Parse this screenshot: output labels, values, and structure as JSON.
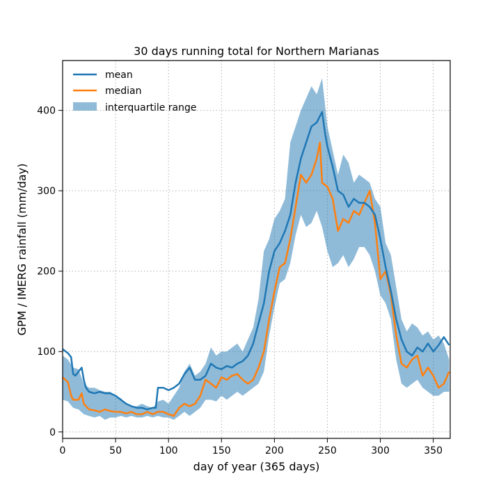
{
  "chart_data": {
    "type": "line",
    "title": "30 days running total for Northern Marianas",
    "xlabel": "day of year (365 days)",
    "ylabel": "GPM / IMERG rainfall (mm/day)",
    "xlim": [
      0,
      366
    ],
    "ylim": [
      -8,
      462
    ],
    "xticks": [
      0,
      50,
      100,
      150,
      200,
      250,
      300,
      350
    ],
    "yticks": [
      0,
      100,
      200,
      300,
      400
    ],
    "grid": true,
    "legend_position": "top-left",
    "colors": {
      "mean": "#1f77b4",
      "median": "#ff7f0e",
      "iqr": "#1f77b4"
    },
    "series": [
      {
        "name": "mean",
        "x": [
          0,
          5,
          8,
          10,
          12,
          15,
          18,
          20,
          22,
          25,
          30,
          35,
          40,
          45,
          50,
          55,
          60,
          65,
          70,
          75,
          80,
          85,
          88,
          90,
          95,
          100,
          105,
          110,
          115,
          120,
          125,
          130,
          135,
          140,
          145,
          150,
          155,
          160,
          165,
          170,
          175,
          180,
          185,
          190,
          195,
          200,
          205,
          210,
          215,
          220,
          225,
          230,
          235,
          240,
          245,
          248,
          250,
          255,
          260,
          265,
          270,
          275,
          280,
          285,
          290,
          295,
          300,
          305,
          310,
          315,
          320,
          325,
          330,
          335,
          340,
          345,
          350,
          355,
          360,
          365
        ],
        "values": [
          103,
          98,
          93,
          72,
          70,
          75,
          80,
          65,
          55,
          50,
          48,
          50,
          48,
          48,
          45,
          40,
          35,
          32,
          30,
          30,
          28,
          30,
          30,
          55,
          55,
          52,
          55,
          60,
          72,
          80,
          65,
          65,
          70,
          85,
          80,
          78,
          82,
          80,
          85,
          88,
          95,
          110,
          135,
          160,
          200,
          225,
          235,
          250,
          270,
          310,
          340,
          360,
          380,
          385,
          398,
          370,
          355,
          330,
          300,
          295,
          280,
          290,
          285,
          285,
          280,
          270,
          240,
          205,
          175,
          140,
          115,
          100,
          95,
          105,
          100,
          110,
          100,
          108,
          118,
          108
        ]
      },
      {
        "name": "median",
        "x": [
          0,
          5,
          8,
          10,
          15,
          18,
          20,
          25,
          30,
          35,
          40,
          45,
          50,
          55,
          60,
          65,
          70,
          75,
          80,
          85,
          90,
          95,
          100,
          105,
          110,
          115,
          120,
          125,
          130,
          135,
          140,
          145,
          150,
          155,
          160,
          165,
          170,
          175,
          180,
          185,
          190,
          195,
          200,
          205,
          210,
          215,
          220,
          225,
          230,
          235,
          240,
          243,
          245,
          250,
          255,
          260,
          265,
          270,
          275,
          280,
          285,
          290,
          295,
          300,
          305,
          310,
          315,
          320,
          325,
          330,
          335,
          340,
          345,
          350,
          355,
          360,
          365
        ],
        "values": [
          68,
          62,
          45,
          40,
          40,
          48,
          35,
          28,
          27,
          25,
          28,
          26,
          25,
          25,
          23,
          25,
          22,
          22,
          25,
          22,
          25,
          25,
          22,
          20,
          30,
          35,
          32,
          35,
          45,
          65,
          60,
          55,
          68,
          65,
          70,
          72,
          65,
          60,
          65,
          80,
          100,
          140,
          175,
          205,
          210,
          240,
          280,
          320,
          310,
          320,
          340,
          360,
          310,
          305,
          290,
          250,
          265,
          260,
          275,
          270,
          285,
          300,
          260,
          190,
          200,
          170,
          120,
          85,
          80,
          90,
          95,
          70,
          80,
          70,
          55,
          60,
          75
        ]
      }
    ],
    "iqr": {
      "name": "interquartile range",
      "x": [
        0,
        5,
        10,
        15,
        20,
        25,
        30,
        35,
        40,
        45,
        50,
        55,
        60,
        65,
        70,
        75,
        80,
        85,
        90,
        95,
        100,
        105,
        110,
        115,
        120,
        125,
        130,
        135,
        140,
        145,
        150,
        155,
        160,
        165,
        170,
        175,
        180,
        185,
        190,
        195,
        200,
        205,
        210,
        215,
        220,
        225,
        230,
        235,
        240,
        245,
        250,
        255,
        260,
        265,
        270,
        275,
        280,
        285,
        290,
        295,
        300,
        305,
        310,
        315,
        320,
        325,
        330,
        335,
        340,
        345,
        350,
        355,
        360,
        365
      ],
      "lower": [
        40,
        38,
        30,
        28,
        22,
        20,
        18,
        20,
        15,
        18,
        18,
        20,
        18,
        20,
        18,
        18,
        20,
        18,
        20,
        18,
        18,
        15,
        20,
        25,
        20,
        25,
        30,
        40,
        40,
        38,
        45,
        40,
        45,
        50,
        45,
        50,
        55,
        60,
        75,
        120,
        155,
        185,
        190,
        210,
        245,
        270,
        255,
        260,
        275,
        255,
        225,
        205,
        210,
        220,
        205,
        215,
        230,
        230,
        220,
        200,
        170,
        160,
        140,
        90,
        60,
        55,
        60,
        65,
        55,
        50,
        45,
        45,
        50,
        50
      ],
      "upper": [
        95,
        90,
        80,
        78,
        60,
        55,
        55,
        52,
        50,
        50,
        45,
        42,
        35,
        32,
        32,
        35,
        32,
        30,
        38,
        40,
        35,
        45,
        55,
        75,
        85,
        70,
        75,
        85,
        105,
        95,
        100,
        100,
        105,
        110,
        100,
        115,
        130,
        165,
        225,
        240,
        265,
        275,
        290,
        360,
        380,
        400,
        415,
        430,
        420,
        440,
        380,
        350,
        320,
        345,
        335,
        310,
        320,
        315,
        310,
        290,
        280,
        235,
        220,
        180,
        140,
        125,
        135,
        130,
        120,
        125,
        115,
        120,
        110,
        90
      ]
    }
  }
}
